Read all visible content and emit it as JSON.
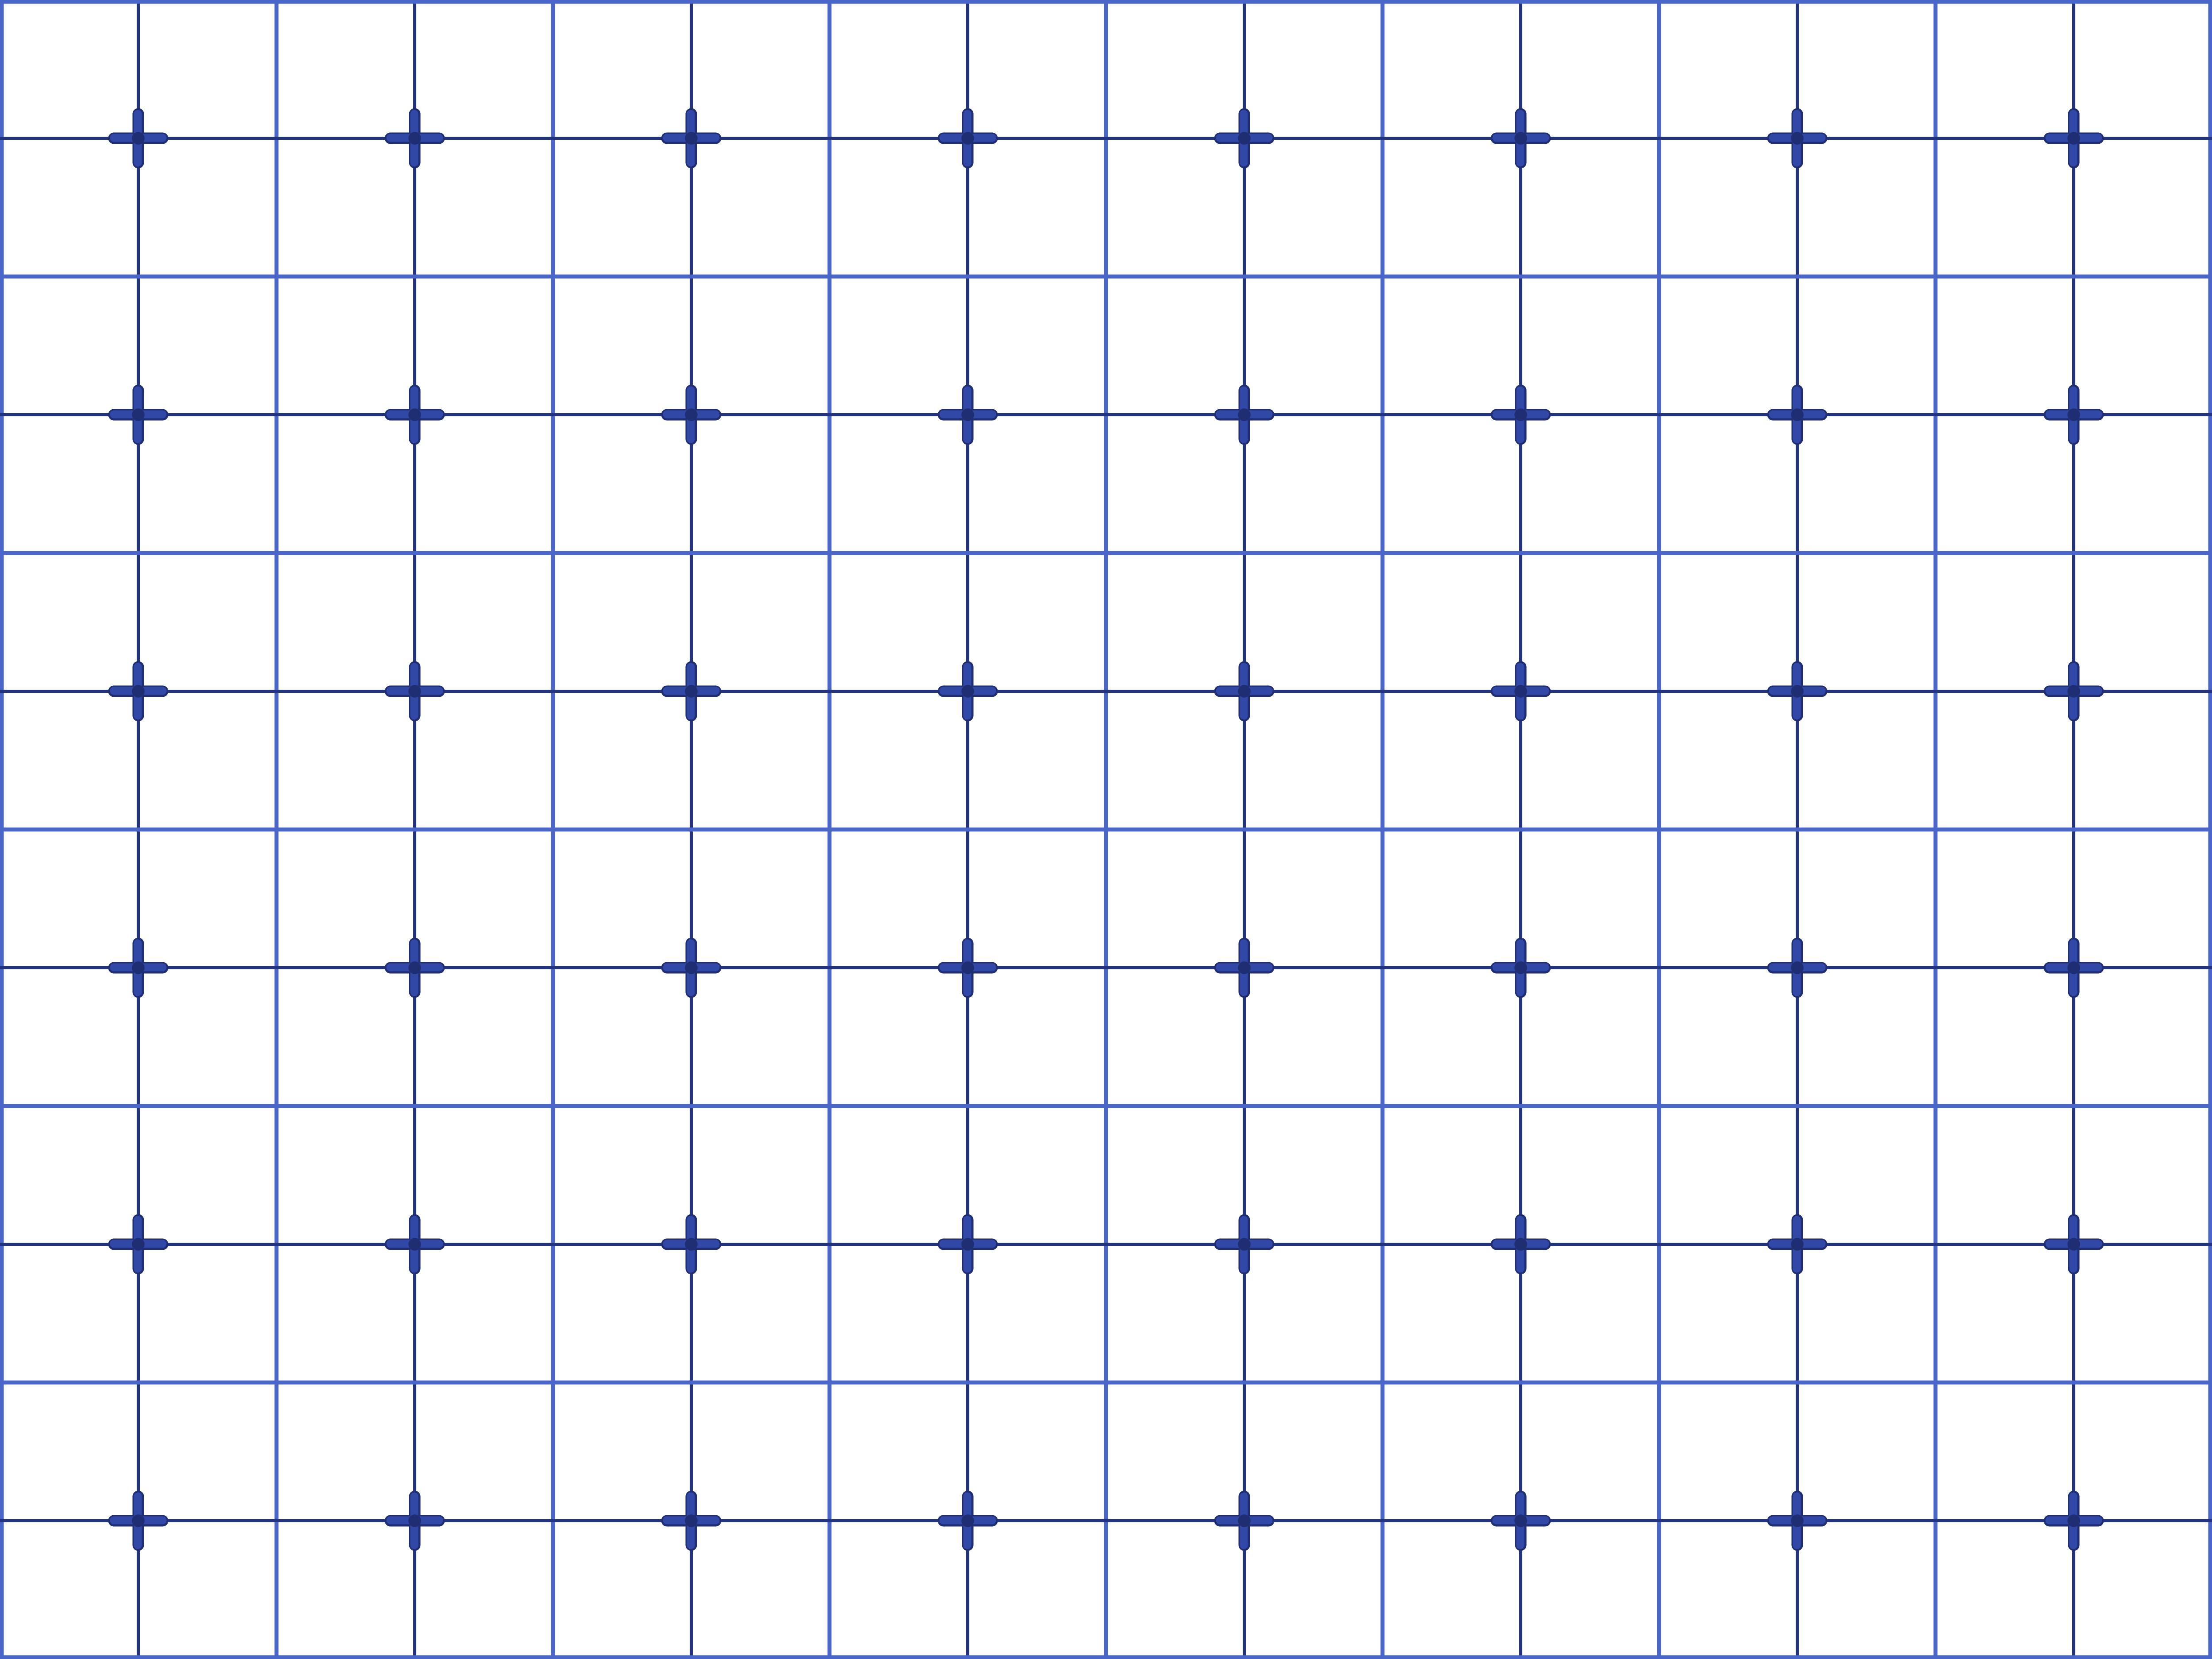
{
  "pattern": {
    "kind": "blue square grid with cross ornaments",
    "columns": 16,
    "rows": 12,
    "ornament_columns": 8,
    "ornament_rows": 6,
    "colors": {
      "background": "#ffffff",
      "line_light": "#4a66c8",
      "line_dark": "#22347f",
      "ornament_fill": "#3148a6",
      "ornament_shadow": "#1f2d73"
    },
    "icons": [
      "cross-ornament-icon"
    ]
  }
}
